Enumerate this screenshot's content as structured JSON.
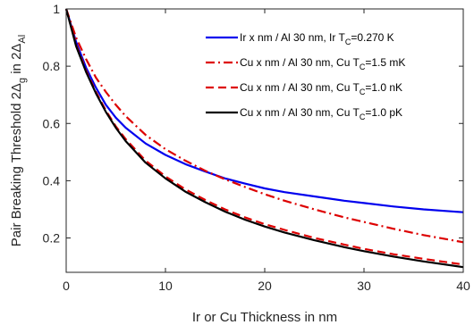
{
  "chart_data": {
    "type": "line",
    "xlabel": "Ir or Cu Thickness in nm",
    "ylabel_parts": {
      "main": "Pair Breaking Threshold 2Δ",
      "sub1": "g",
      "mid": " in 2Δ",
      "sub2": "Al"
    },
    "xlim": [
      0,
      40
    ],
    "ylim": [
      0.08,
      1.0
    ],
    "x_ticks": [
      0,
      10,
      20,
      30,
      40
    ],
    "y_ticks": [
      0.2,
      0.4,
      0.6,
      0.8,
      1
    ],
    "grid": false,
    "legend_position": "top-right",
    "series": [
      {
        "legend": {
          "pre": "Ir x nm / Al 30 nm, Ir T",
          "sub": "C",
          "post": "=0.270 K"
        },
        "color": "#0000ee",
        "style": "solid",
        "points": [
          [
            0,
            1.0
          ],
          [
            1,
            0.885
          ],
          [
            2,
            0.795
          ],
          [
            3,
            0.725
          ],
          [
            4,
            0.665
          ],
          [
            5,
            0.62
          ],
          [
            6,
            0.585
          ],
          [
            8,
            0.53
          ],
          [
            10,
            0.49
          ],
          [
            12,
            0.458
          ],
          [
            14,
            0.432
          ],
          [
            16,
            0.408
          ],
          [
            18,
            0.39
          ],
          [
            20,
            0.373
          ],
          [
            22,
            0.36
          ],
          [
            25,
            0.345
          ],
          [
            28,
            0.33
          ],
          [
            30,
            0.322
          ],
          [
            33,
            0.31
          ],
          [
            36,
            0.3
          ],
          [
            40,
            0.29
          ]
        ]
      },
      {
        "legend": {
          "pre": "Cu x nm / Al 30 nm, Cu T",
          "sub": "C",
          "post": "=1.5 mK"
        },
        "color": "#dd0000",
        "style": "dashdot",
        "points": [
          [
            0,
            1.0
          ],
          [
            1,
            0.9
          ],
          [
            2,
            0.825
          ],
          [
            3,
            0.76
          ],
          [
            4,
            0.71
          ],
          [
            5,
            0.665
          ],
          [
            6,
            0.625
          ],
          [
            8,
            0.56
          ],
          [
            10,
            0.51
          ],
          [
            12,
            0.47
          ],
          [
            14,
            0.435
          ],
          [
            16,
            0.405
          ],
          [
            18,
            0.378
          ],
          [
            20,
            0.353
          ],
          [
            22,
            0.33
          ],
          [
            25,
            0.3
          ],
          [
            28,
            0.272
          ],
          [
            30,
            0.256
          ],
          [
            33,
            0.232
          ],
          [
            36,
            0.21
          ],
          [
            40,
            0.185
          ]
        ]
      },
      {
        "legend": {
          "pre": "Cu x nm / Al 30 nm, Cu T",
          "sub": "C",
          "post": "=1.0 nK"
        },
        "color": "#dd0000",
        "style": "dashed",
        "points": [
          [
            0,
            1.0
          ],
          [
            1,
            0.875
          ],
          [
            2,
            0.785
          ],
          [
            3,
            0.71
          ],
          [
            4,
            0.645
          ],
          [
            5,
            0.59
          ],
          [
            6,
            0.545
          ],
          [
            8,
            0.47
          ],
          [
            10,
            0.415
          ],
          [
            12,
            0.37
          ],
          [
            14,
            0.333
          ],
          [
            16,
            0.3
          ],
          [
            18,
            0.272
          ],
          [
            20,
            0.248
          ],
          [
            22,
            0.228
          ],
          [
            25,
            0.2
          ],
          [
            28,
            0.177
          ],
          [
            30,
            0.162
          ],
          [
            33,
            0.143
          ],
          [
            36,
            0.127
          ],
          [
            40,
            0.107
          ]
        ]
      },
      {
        "legend": {
          "pre": "Cu x nm / Al 30 nm, Cu T",
          "sub": "C",
          "post": "=1.0 pK"
        },
        "color": "#000000",
        "style": "solid",
        "points": [
          [
            0,
            1.0
          ],
          [
            1,
            0.87
          ],
          [
            2,
            0.78
          ],
          [
            3,
            0.705
          ],
          [
            4,
            0.64
          ],
          [
            5,
            0.585
          ],
          [
            6,
            0.538
          ],
          [
            8,
            0.463
          ],
          [
            10,
            0.408
          ],
          [
            12,
            0.362
          ],
          [
            14,
            0.325
          ],
          [
            16,
            0.292
          ],
          [
            18,
            0.264
          ],
          [
            20,
            0.24
          ],
          [
            22,
            0.219
          ],
          [
            25,
            0.192
          ],
          [
            28,
            0.168
          ],
          [
            30,
            0.154
          ],
          [
            33,
            0.135
          ],
          [
            36,
            0.118
          ],
          [
            40,
            0.098
          ]
        ]
      }
    ]
  }
}
